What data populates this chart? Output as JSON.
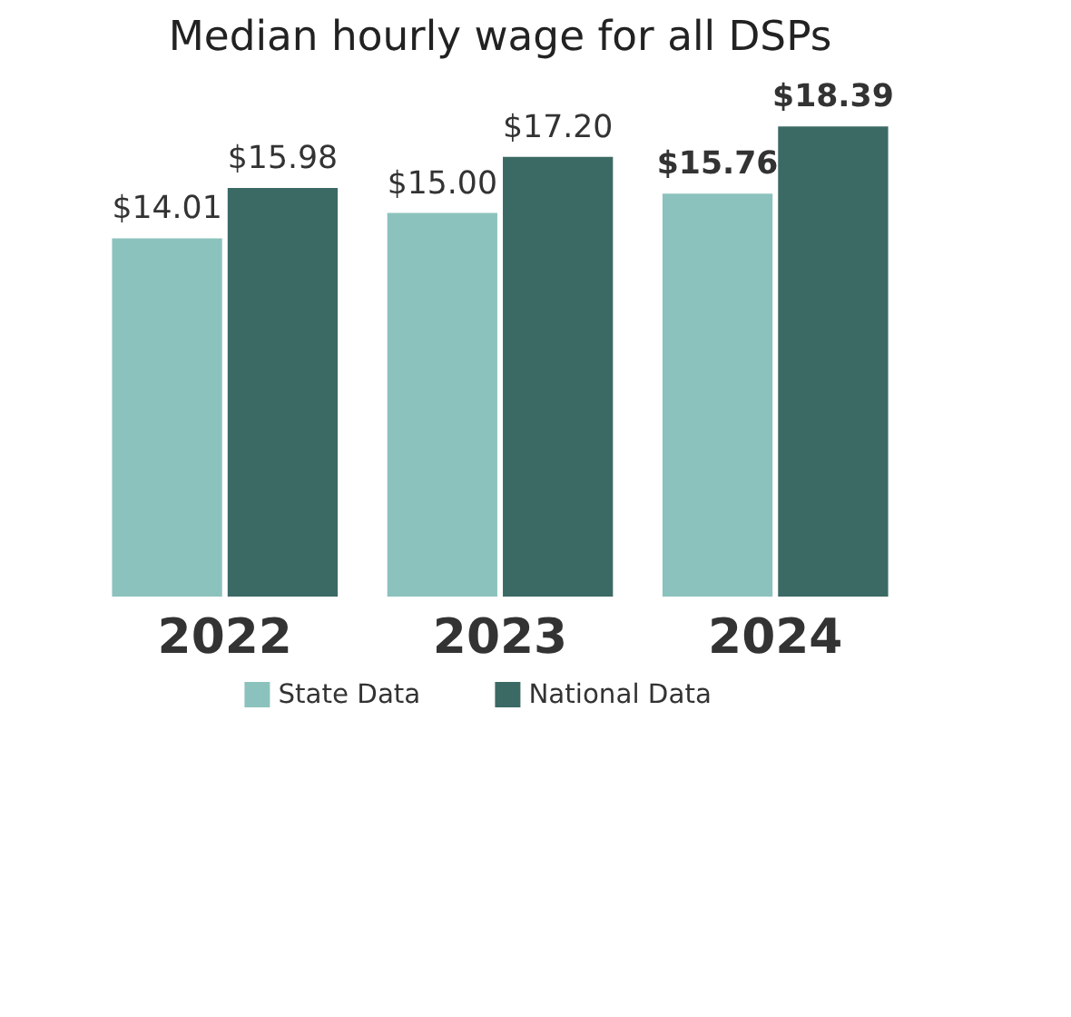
{
  "chart_data": {
    "type": "bar",
    "title": "Median hourly wage for all DSPs",
    "categories": [
      "2022",
      "2023",
      "2024"
    ],
    "series": [
      {
        "name": "State Data",
        "color": "#8cc2bd",
        "values": [
          14.01,
          15.0,
          15.76
        ],
        "value_labels": [
          "$14.01",
          "$15.00",
          "$15.76"
        ]
      },
      {
        "name": "National Data",
        "color": "#3b6a65",
        "values": [
          15.98,
          17.2,
          18.39
        ],
        "value_labels": [
          "$15.98",
          "$17.20",
          "$18.39"
        ]
      }
    ],
    "grid": false,
    "legend": "bottom"
  }
}
